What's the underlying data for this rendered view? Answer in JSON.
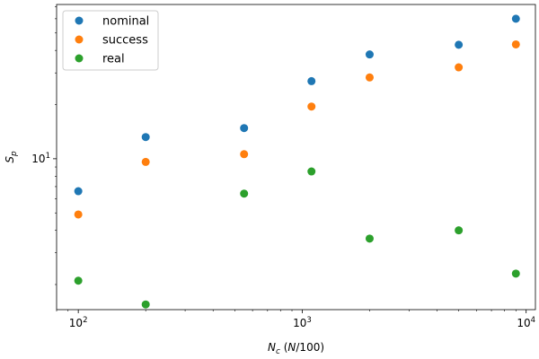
{
  "chart_data": {
    "type": "scatter",
    "x_scale": "log",
    "y_scale": "log",
    "xlabel": "N_c (N/100)",
    "ylabel": "S_p",
    "xlim": [
      80,
      11000
    ],
    "ylim": [
      1.45,
      72
    ],
    "x_ticks": [
      {
        "value": 100,
        "label": "10",
        "exp": "2"
      },
      {
        "value": 1000,
        "label": "10",
        "exp": "3"
      },
      {
        "value": 10000,
        "label": "10",
        "exp": "4"
      }
    ],
    "y_ticks": [
      {
        "value": 10,
        "label": "10",
        "exp": "1"
      }
    ],
    "legend_position": "upper-left",
    "grid": false,
    "series": [
      {
        "name": "nominal",
        "color": "#1f77b4",
        "points": [
          [
            100,
            6.6
          ],
          [
            200,
            13.2
          ],
          [
            550,
            14.8
          ],
          [
            1100,
            27.0
          ],
          [
            2000,
            38.0
          ],
          [
            5000,
            43.0
          ],
          [
            9000,
            60.0
          ]
        ]
      },
      {
        "name": "success",
        "color": "#ff7f0e",
        "points": [
          [
            100,
            4.9
          ],
          [
            200,
            9.6
          ],
          [
            550,
            10.6
          ],
          [
            1100,
            19.5
          ],
          [
            2000,
            28.3
          ],
          [
            5000,
            32.2
          ],
          [
            9000,
            43.2
          ]
        ]
      },
      {
        "name": "real",
        "color": "#2ca02c",
        "points": [
          [
            100,
            2.1
          ],
          [
            200,
            1.55
          ],
          [
            550,
            6.4
          ],
          [
            1100,
            8.5
          ],
          [
            2000,
            3.6
          ],
          [
            5000,
            4.0
          ],
          [
            9000,
            2.3
          ]
        ]
      }
    ]
  }
}
